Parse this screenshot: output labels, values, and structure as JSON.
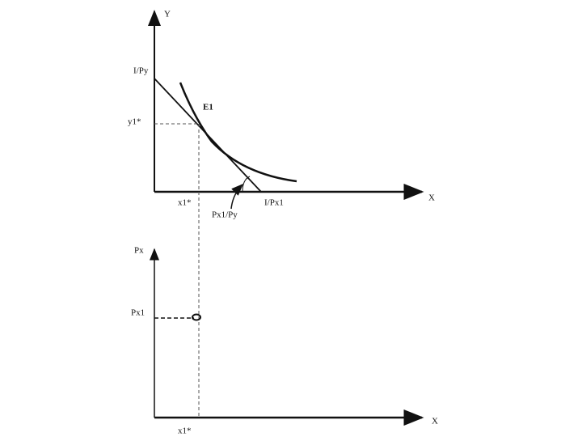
{
  "top_panel": {
    "y_axis_label": "Y",
    "x_axis_label": "X",
    "intercept_y": "I/Py",
    "y_optimum": "y1*",
    "equilibrium": "E1",
    "x_optimum": "x1*",
    "slope": "Px1/Py",
    "intercept_x": "I/Px1"
  },
  "bottom_panel": {
    "y_axis_label": "Px",
    "x_axis_label": "X",
    "price": "Px1",
    "x_optimum": "x1*"
  }
}
